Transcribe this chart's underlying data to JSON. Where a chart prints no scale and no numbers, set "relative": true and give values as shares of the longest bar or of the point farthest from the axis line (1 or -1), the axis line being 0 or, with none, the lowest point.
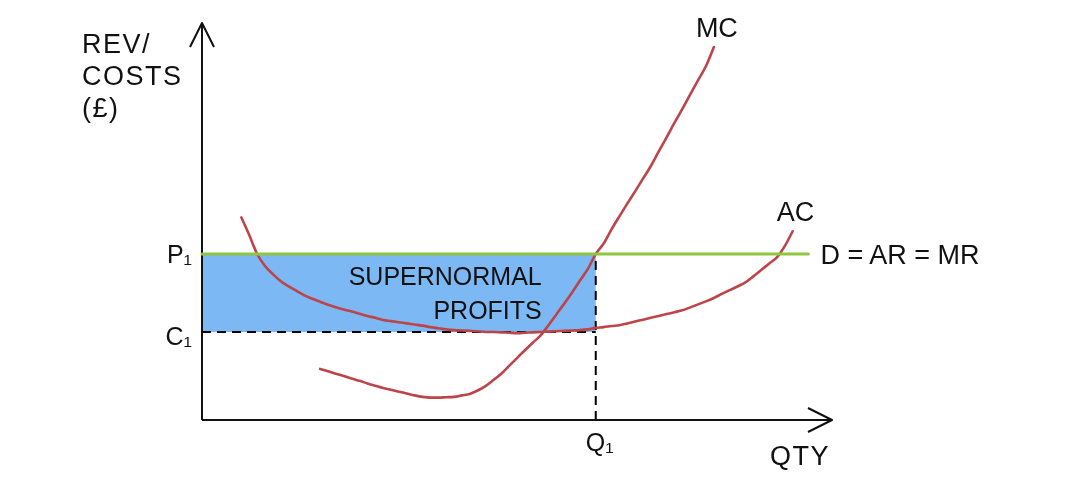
{
  "chart_data": {
    "type": "line",
    "relative": true,
    "xlabel": "QTY",
    "ylabel": "REV/ COSTS (£)",
    "categories": [
      null,
      null,
      null,
      null,
      null,
      null,
      null,
      null,
      null,
      null,
      null,
      null,
      null,
      null,
      null,
      null,
      null,
      null,
      null,
      null,
      null,
      null,
      null,
      null,
      null,
      null,
      null,
      null,
      null,
      null,
      null,
      null,
      null,
      null,
      null,
      null,
      null,
      null,
      null,
      null,
      null,
      null,
      null,
      null,
      null,
      null,
      null,
      null,
      null,
      null,
      null,
      null,
      null,
      null,
      null,
      null,
      null,
      null,
      null,
      null,
      null,
      null,
      null,
      null,
      null,
      null,
      null,
      null,
      null,
      null,
      null,
      null,
      null,
      null,
      null,
      null,
      null,
      null,
      null,
      null,
      null
    ],
    "series": [
      {
        "name": "MC",
        "color": "#bd4549",
        "values": [
          null,
          null,
          null,
          null,
          null,
          null,
          null,
          null,
          null,
          null,
          null,
          null,
          null,
          null,
          null,
          0.137,
          0.131,
          0.124,
          0.118,
          0.111,
          0.105,
          0.098,
          0.092,
          0.086,
          0.081,
          0.076,
          0.071,
          0.066,
          0.062,
          0.06,
          0.06,
          0.061,
          0.062,
          0.066,
          0.07,
          0.079,
          0.091,
          0.107,
          0.124,
          0.145,
          0.166,
          0.187,
          0.207,
          0.227,
          0.254,
          0.283,
          0.312,
          0.342,
          0.374,
          0.405,
          0.445,
          0.473,
          0.511,
          0.546,
          0.58,
          0.613,
          0.647,
          0.681,
          0.72,
          0.758,
          0.797,
          0.834,
          0.873,
          0.911,
          0.949,
          1,
          null,
          null,
          null,
          null,
          null,
          null,
          null,
          null,
          null,
          null,
          null,
          null,
          null,
          null,
          null
        ]
      },
      {
        "name": "AC",
        "color": "#bd4549",
        "values": [
          null,
          null,
          null,
          null,
          null,
          0.543,
          0.496,
          0.445,
          0.413,
          0.391,
          0.372,
          0.358,
          0.346,
          0.334,
          0.325,
          0.317,
          0.309,
          0.302,
          0.296,
          0.291,
          0.285,
          0.279,
          0.274,
          0.268,
          0.265,
          0.262,
          0.259,
          0.256,
          0.253,
          0.249,
          0.246,
          0.243,
          0.241,
          0.24,
          0.239,
          0.238,
          0.236,
          0.236,
          0.235,
          0.234,
          0.233,
          0.234,
          0.235,
          0.236,
          0.237,
          0.238,
          0.239,
          0.24,
          0.241,
          0.243,
          0.247,
          0.249,
          0.252,
          0.254,
          0.259,
          0.264,
          0.269,
          0.274,
          0.279,
          0.284,
          0.289,
          0.294,
          0.302,
          0.31,
          0.318,
          0.327,
          0.338,
          0.348,
          0.358,
          0.369,
          0.385,
          0.402,
          0.419,
          0.436,
          0.466,
          0.506,
          null,
          null,
          null,
          null,
          null
        ]
      },
      {
        "name": "D = AR = MR",
        "color": "#8dc63f",
        "values": [
          0.445,
          0.445,
          0.445,
          0.445,
          0.445,
          0.445,
          0.445,
          0.445,
          0.445,
          0.445,
          0.445,
          0.445,
          0.445,
          0.445,
          0.445,
          0.445,
          0.445,
          0.445,
          0.445,
          0.445,
          0.445,
          0.445,
          0.445,
          0.445,
          0.445,
          0.445,
          0.445,
          0.445,
          0.445,
          0.445,
          0.445,
          0.445,
          0.445,
          0.445,
          0.445,
          0.445,
          0.445,
          0.445,
          0.445,
          0.445,
          0.445,
          0.445,
          0.445,
          0.445,
          0.445,
          0.445,
          0.445,
          0.445,
          0.445,
          0.445,
          0.445,
          0.445,
          0.445,
          0.445,
          0.445,
          0.445,
          0.445,
          0.445,
          0.445,
          0.445,
          0.445,
          0.445,
          0.445,
          0.445,
          0.445,
          0.445,
          0.445,
          0.445,
          0.445,
          0.445,
          0.445,
          0.445,
          0.445,
          0.445,
          0.445,
          0.445,
          0.445,
          0.445,
          null,
          null,
          null
        ]
      }
    ],
    "bands": [
      {
        "axis": "y",
        "from": 0.236,
        "to": 0.445,
        "label": "SUPERNORMAL PROFITS",
        "color": "#7bb8f4"
      }
    ],
    "ref_lines": [
      {
        "axis": "y",
        "value": 0.236,
        "label": "C₁",
        "line_style": "dashed",
        "color": "#000000"
      }
    ],
    "annotations": [
      "P₁",
      "Q₁"
    ]
  }
}
